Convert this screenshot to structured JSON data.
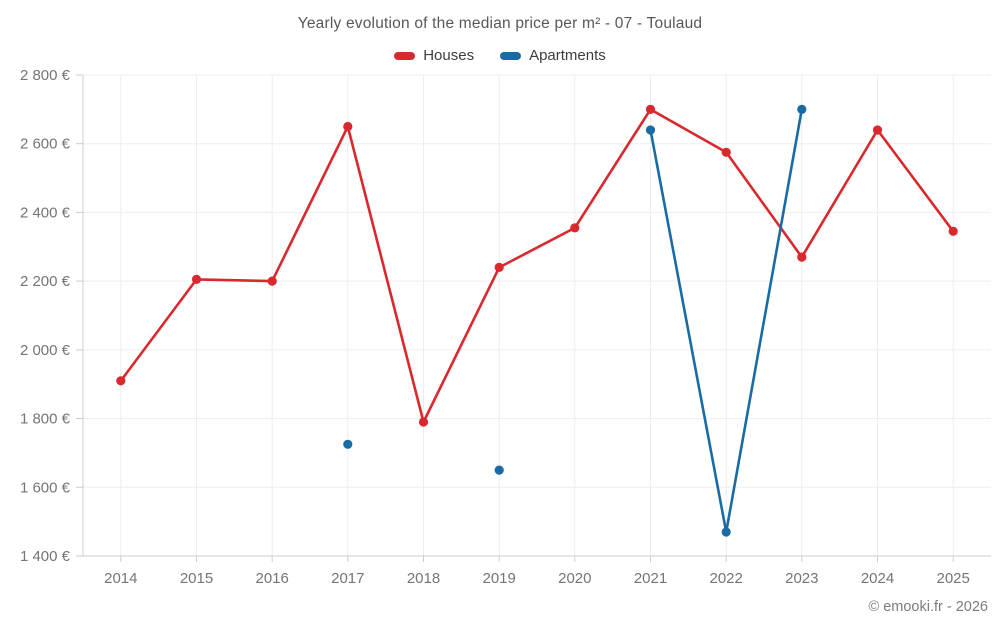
{
  "page": {
    "title": "Yearly evolution of the median price per m² - 07 - Toulaud",
    "footer": "© emooki.fr - 2026"
  },
  "chart_data": {
    "type": "line",
    "title": "Yearly evolution of the median price per m² - 07 - Toulaud",
    "x": [
      "2014",
      "2015",
      "2016",
      "2017",
      "2018",
      "2019",
      "2020",
      "2021",
      "2022",
      "2023",
      "2024",
      "2025"
    ],
    "series": [
      {
        "name": "Houses",
        "color": "#d9282e",
        "values": [
          1910,
          2205,
          2200,
          2650,
          1790,
          2240,
          2355,
          2700,
          2575,
          2270,
          2640,
          2345
        ]
      },
      {
        "name": "Apartments",
        "color": "#1a6ba3",
        "values": [
          null,
          null,
          null,
          1725,
          null,
          1650,
          null,
          2640,
          1470,
          2700,
          null,
          null
        ]
      }
    ],
    "ylim": [
      1400,
      2800
    ],
    "ytick_step": 200,
    "ytick_suffix": " €",
    "yticks": [
      1400,
      1600,
      1800,
      2000,
      2200,
      2400,
      2600,
      2800
    ],
    "grid": true,
    "legend_position": "top",
    "xlabel": "",
    "ylabel": ""
  }
}
